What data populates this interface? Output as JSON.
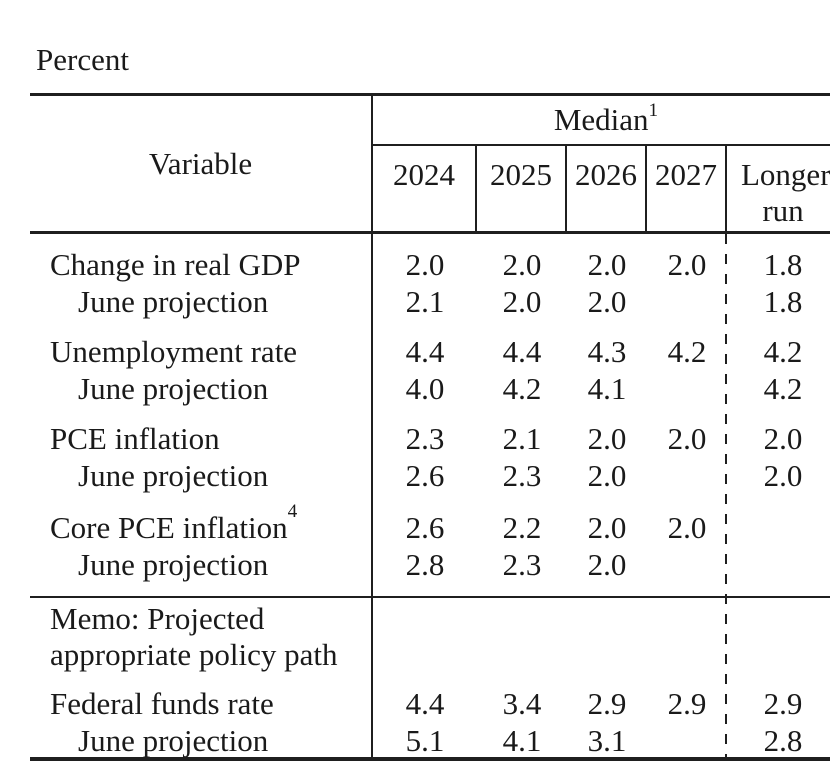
{
  "unit_label": "Percent",
  "colors": {
    "text": "#1a1a1a",
    "rule": "#1f1f1f",
    "background": "#ffffff"
  },
  "table": {
    "header": {
      "variable": "Variable",
      "median_base": "Median",
      "median_sup": "1",
      "years": [
        "2024",
        "2025",
        "2026",
        "2027"
      ],
      "longer_run": "Longer run"
    },
    "groups": [
      {
        "rows": [
          {
            "label": "Change in real GDP",
            "sup": "",
            "values": [
              "2.0",
              "2.0",
              "2.0",
              "2.0",
              "1.8"
            ]
          },
          {
            "label": "June projection",
            "sup": "",
            "values": [
              "2.1",
              "2.0",
              "2.0",
              "",
              "1.8"
            ]
          }
        ]
      },
      {
        "rows": [
          {
            "label": "Unemployment rate",
            "sup": "",
            "values": [
              "4.4",
              "4.4",
              "4.3",
              "4.2",
              "4.2"
            ]
          },
          {
            "label": "June projection",
            "sup": "",
            "values": [
              "4.0",
              "4.2",
              "4.1",
              "",
              "4.2"
            ]
          }
        ]
      },
      {
        "rows": [
          {
            "label": "PCE inflation",
            "sup": "",
            "values": [
              "2.3",
              "2.1",
              "2.0",
              "2.0",
              "2.0"
            ]
          },
          {
            "label": "June projection",
            "sup": "",
            "values": [
              "2.6",
              "2.3",
              "2.0",
              "",
              "2.0"
            ]
          }
        ]
      },
      {
        "rows": [
          {
            "label": "Core PCE inflation",
            "sup": "4",
            "values": [
              "2.6",
              "2.2",
              "2.0",
              "2.0",
              ""
            ]
          },
          {
            "label": "June projection",
            "sup": "",
            "values": [
              "2.8",
              "2.3",
              "2.0",
              "",
              ""
            ]
          }
        ]
      },
      {
        "rows": [
          {
            "label": "Federal funds rate",
            "sup": "",
            "values": [
              "4.4",
              "3.4",
              "2.9",
              "2.9",
              "2.9"
            ]
          },
          {
            "label": "June projection",
            "sup": "",
            "values": [
              "5.1",
              "4.1",
              "3.1",
              "",
              "2.8"
            ]
          }
        ]
      }
    ],
    "memo": {
      "line1": "Memo: Projected",
      "line2": "appropriate policy path"
    }
  },
  "chart_data": {
    "type": "table",
    "title": "Percent",
    "column_group": "Median",
    "columns": [
      "Variable",
      "2024",
      "2025",
      "2026",
      "2027",
      "Longer run"
    ],
    "rows": [
      [
        "Change in real GDP",
        2.0,
        2.0,
        2.0,
        2.0,
        1.8
      ],
      [
        "June projection",
        2.1,
        2.0,
        2.0,
        null,
        1.8
      ],
      [
        "Unemployment rate",
        4.4,
        4.4,
        4.3,
        4.2,
        4.2
      ],
      [
        "June projection",
        4.0,
        4.2,
        4.1,
        null,
        4.2
      ],
      [
        "PCE inflation",
        2.3,
        2.1,
        2.0,
        2.0,
        2.0
      ],
      [
        "June projection",
        2.6,
        2.3,
        2.0,
        null,
        2.0
      ],
      [
        "Core PCE inflation",
        2.6,
        2.2,
        2.0,
        2.0,
        null
      ],
      [
        "June projection",
        2.8,
        2.3,
        2.0,
        null,
        null
      ],
      [
        "Memo: Projected appropriate policy path",
        null,
        null,
        null,
        null,
        null
      ],
      [
        "Federal funds rate",
        4.4,
        3.4,
        2.9,
        2.9,
        2.9
      ],
      [
        "June projection",
        5.1,
        4.1,
        3.1,
        null,
        2.8
      ]
    ]
  }
}
